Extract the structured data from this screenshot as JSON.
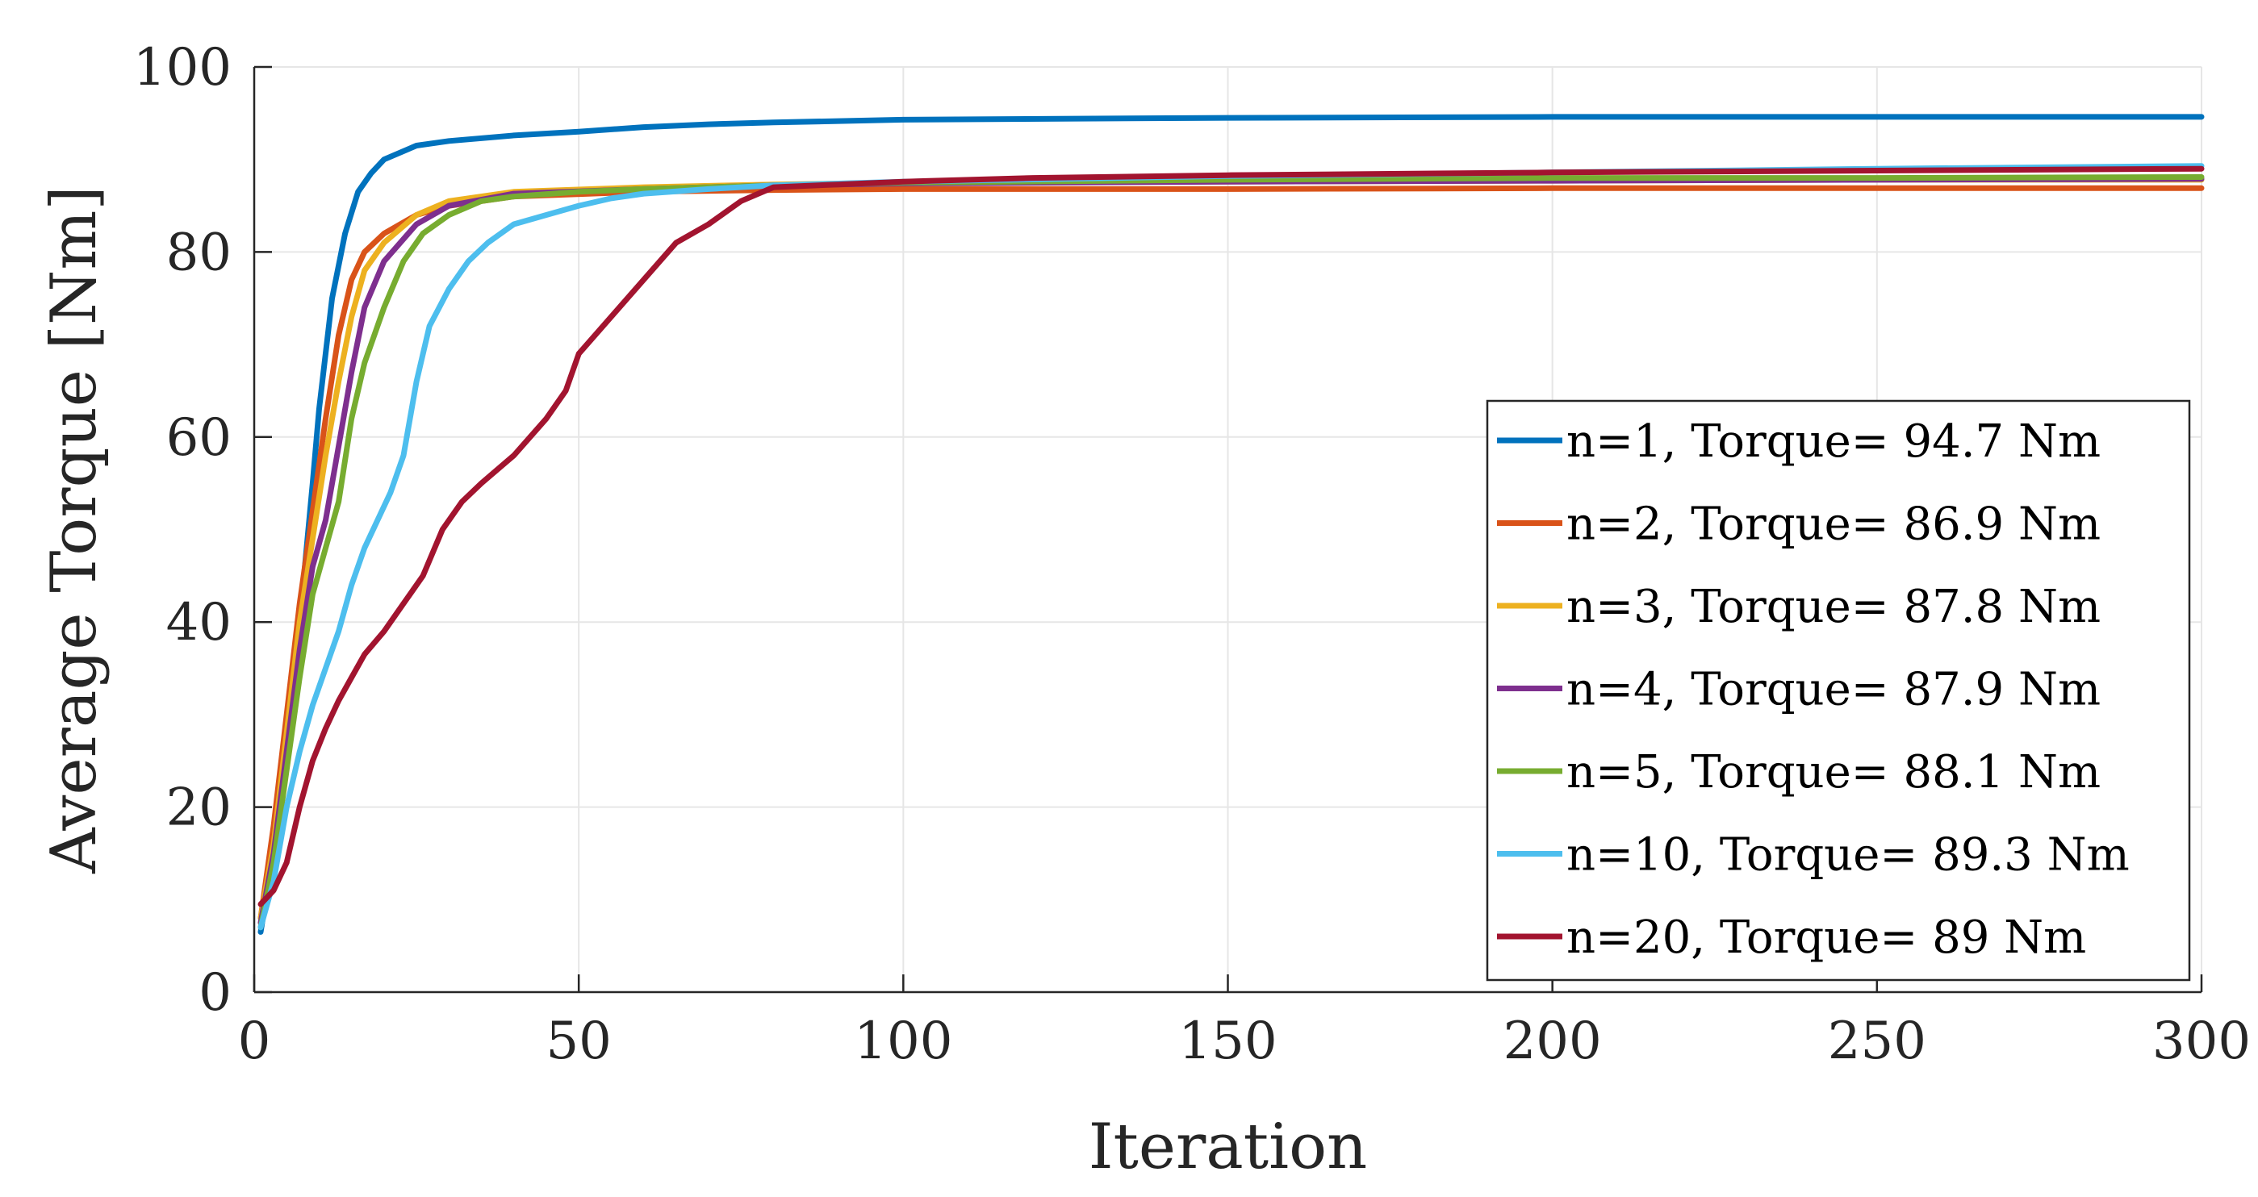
{
  "chart_data": {
    "type": "line",
    "title": "",
    "xlabel": "Iteration",
    "ylabel": "Average Torque [Nm]",
    "xlim": [
      0,
      300
    ],
    "ylim": [
      0,
      100
    ],
    "xticks": [
      0,
      50,
      100,
      150,
      200,
      250,
      300
    ],
    "yticks": [
      0,
      20,
      40,
      60,
      80,
      100
    ],
    "grid": true,
    "legend_position": "right",
    "series": [
      {
        "name": "n=1, Torque= 94.7 Nm",
        "color": "#0072BD",
        "points": [
          [
            1,
            6.5
          ],
          [
            3,
            15
          ],
          [
            5,
            27
          ],
          [
            7,
            40
          ],
          [
            9,
            55
          ],
          [
            10,
            63
          ],
          [
            12,
            75
          ],
          [
            14,
            82
          ],
          [
            16,
            86.5
          ],
          [
            18,
            88.5
          ],
          [
            20,
            90
          ],
          [
            25,
            91.5
          ],
          [
            30,
            92
          ],
          [
            40,
            92.6
          ],
          [
            50,
            93
          ],
          [
            60,
            93.5
          ],
          [
            70,
            93.8
          ],
          [
            80,
            94
          ],
          [
            100,
            94.3
          ],
          [
            150,
            94.5
          ],
          [
            200,
            94.6
          ],
          [
            250,
            94.6
          ],
          [
            300,
            94.6
          ]
        ]
      },
      {
        "name": "n=2, Torque= 86.9 Nm",
        "color": "#D95319",
        "points": [
          [
            1,
            8
          ],
          [
            3,
            18
          ],
          [
            5,
            30
          ],
          [
            7,
            42
          ],
          [
            9,
            52
          ],
          [
            11,
            62
          ],
          [
            13,
            71
          ],
          [
            15,
            77
          ],
          [
            17,
            80
          ],
          [
            20,
            82
          ],
          [
            25,
            84
          ],
          [
            30,
            85
          ],
          [
            40,
            86
          ],
          [
            60,
            86.5
          ],
          [
            80,
            86.7
          ],
          [
            100,
            86.8
          ],
          [
            150,
            86.8
          ],
          [
            200,
            86.9
          ],
          [
            250,
            86.9
          ],
          [
            300,
            86.9
          ]
        ]
      },
      {
        "name": "n=3, Torque= 87.8 Nm",
        "color": "#EDB120",
        "points": [
          [
            1,
            8
          ],
          [
            3,
            16
          ],
          [
            5,
            28
          ],
          [
            7,
            40
          ],
          [
            9,
            49
          ],
          [
            11,
            58
          ],
          [
            13,
            66
          ],
          [
            15,
            73
          ],
          [
            17,
            78
          ],
          [
            20,
            81
          ],
          [
            25,
            84
          ],
          [
            30,
            85.5
          ],
          [
            40,
            86.5
          ],
          [
            60,
            87
          ],
          [
            80,
            87.3
          ],
          [
            100,
            87.5
          ],
          [
            150,
            87.6
          ],
          [
            200,
            87.7
          ],
          [
            250,
            87.8
          ],
          [
            300,
            87.8
          ]
        ]
      },
      {
        "name": "n=4, Torque= 87.9 Nm",
        "color": "#7E2F8E",
        "points": [
          [
            1,
            7.5
          ],
          [
            3,
            15
          ],
          [
            5,
            26
          ],
          [
            7,
            37
          ],
          [
            9,
            46
          ],
          [
            11,
            51
          ],
          [
            13,
            59
          ],
          [
            15,
            67
          ],
          [
            17,
            74
          ],
          [
            20,
            79
          ],
          [
            25,
            83
          ],
          [
            30,
            85
          ],
          [
            40,
            86.3
          ],
          [
            60,
            86.8
          ],
          [
            80,
            87.2
          ],
          [
            100,
            87.4
          ],
          [
            150,
            87.6
          ],
          [
            200,
            87.7
          ],
          [
            250,
            87.8
          ],
          [
            300,
            87.9
          ]
        ]
      },
      {
        "name": "n=5, Torque= 88.1 Nm",
        "color": "#77AC30",
        "points": [
          [
            1,
            7
          ],
          [
            3,
            14
          ],
          [
            5,
            24
          ],
          [
            7,
            34
          ],
          [
            9,
            43
          ],
          [
            11,
            48
          ],
          [
            13,
            53
          ],
          [
            15,
            62
          ],
          [
            17,
            68
          ],
          [
            20,
            74
          ],
          [
            23,
            79
          ],
          [
            26,
            82
          ],
          [
            30,
            84
          ],
          [
            35,
            85.5
          ],
          [
            40,
            86
          ],
          [
            50,
            86.5
          ],
          [
            60,
            86.8
          ],
          [
            80,
            87.2
          ],
          [
            100,
            87.5
          ],
          [
            150,
            87.8
          ],
          [
            200,
            88
          ],
          [
            250,
            88
          ],
          [
            300,
            88.1
          ]
        ]
      },
      {
        "name": "n=10, Torque= 89.3 Nm",
        "color": "#4DBEEE",
        "points": [
          [
            1,
            7
          ],
          [
            3,
            12
          ],
          [
            5,
            20
          ],
          [
            7,
            26
          ],
          [
            9,
            31
          ],
          [
            11,
            35
          ],
          [
            13,
            39
          ],
          [
            15,
            44
          ],
          [
            17,
            48
          ],
          [
            19,
            51
          ],
          [
            21,
            54
          ],
          [
            23,
            58
          ],
          [
            25,
            66
          ],
          [
            27,
            72
          ],
          [
            30,
            76
          ],
          [
            33,
            79
          ],
          [
            36,
            81
          ],
          [
            40,
            83
          ],
          [
            45,
            84
          ],
          [
            50,
            85
          ],
          [
            55,
            85.8
          ],
          [
            60,
            86.3
          ],
          [
            70,
            86.8
          ],
          [
            80,
            87.2
          ],
          [
            100,
            87.6
          ],
          [
            150,
            88.2
          ],
          [
            200,
            88.6
          ],
          [
            250,
            89
          ],
          [
            300,
            89.3
          ]
        ]
      },
      {
        "name": "n=20, Torque= 89 Nm",
        "color": "#A2142F",
        "points": [
          [
            1,
            9.5
          ],
          [
            3,
            11
          ],
          [
            5,
            14
          ],
          [
            7,
            20
          ],
          [
            9,
            25
          ],
          [
            11,
            28.5
          ],
          [
            13,
            31.5
          ],
          [
            15,
            34
          ],
          [
            17,
            36.5
          ],
          [
            20,
            39
          ],
          [
            23,
            42
          ],
          [
            26,
            45
          ],
          [
            29,
            50
          ],
          [
            32,
            53
          ],
          [
            35,
            55
          ],
          [
            40,
            58
          ],
          [
            45,
            62
          ],
          [
            48,
            65
          ],
          [
            50,
            69
          ],
          [
            55,
            73
          ],
          [
            60,
            77
          ],
          [
            65,
            81
          ],
          [
            70,
            83
          ],
          [
            75,
            85.5
          ],
          [
            80,
            87
          ],
          [
            90,
            87.3
          ],
          [
            100,
            87.6
          ],
          [
            120,
            88
          ],
          [
            150,
            88.3
          ],
          [
            200,
            88.6
          ],
          [
            250,
            88.8
          ],
          [
            300,
            89
          ]
        ]
      }
    ]
  }
}
